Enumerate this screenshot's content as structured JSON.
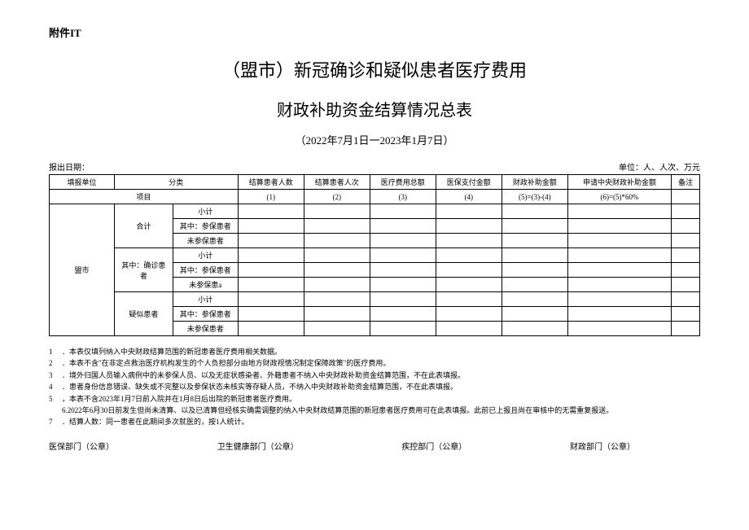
{
  "attachment": "附件IT",
  "title1": "（盟市）新冠确诊和疑似患者医疗费用",
  "title2": "财政补助资金结算情况总表",
  "dateRange": "（2022年7月1日一2023年1月7日）",
  "reportDateLabel": "报出日期：",
  "unitLabel": "单位：人、人次、万元",
  "headers": {
    "unit": "填报单位",
    "category": "分类",
    "col1": "结算患者人数",
    "col2": "结算患者人次",
    "col3": "医疗费用总额",
    "col4": "医保支付金额",
    "col5": "财政补助金额",
    "col6": "申请中央财政补助金额",
    "remark": "备注"
  },
  "headerRow2": {
    "project": "项目",
    "c1": "(1)",
    "c2": "(2)",
    "c3": "(3)",
    "c4": "(4)",
    "c5": "(5)=(3)-(4)",
    "c6": "(6)=(5)*60%"
  },
  "rows": {
    "city": "盟市",
    "total": "合计",
    "confirmed": "其中：确诊患者",
    "suspected": "疑似患者",
    "subtotal": "小计",
    "insured": "其中：参保患者",
    "uninsured": "未参保患者",
    "uninsured2": "未参保患a"
  },
  "notes": [
    "．本表仅填列纳入中央财政结算范围的新冠患者医疗费用相关数据。",
    "．本表不含\"在非定点救治医疗机构发生的个人负担部分由地方财政视情况制定保障政策\"的医疗费用。",
    "．境外归国人员输入病例中的未参保人员、以及无症状感染者、外籍患者不纳入中央财政补助资金结算范围，不在此表填报。",
    "．患者身份信息错误、缺失或不完整以及参保状态未核实等存疑人员，不纳入中央财政补助资金结算范围，不在此表填报。",
    "，本表不含2023年1月7日前入院并在1月8日后出院的新冠患者医疗费用。",
    "6.2022年6月30日前发生但尚未清算、以及已清算但经核实确需调整的纳入中央财政结算范围的新冠患者医疗费用可在此表填报。此前已上报且尚在审核中的无需重复报送。",
    "．结算人数：同一患者在此期间多次就医的，按1人统计。"
  ],
  "noteNums": [
    "1",
    "2",
    "3",
    "4",
    "5",
    "",
    "7"
  ],
  "signatures": {
    "s1": "医保部门（公章）",
    "s2": "卫生健康部门（公章）",
    "s3": "疾控部门（公章）",
    "s4": "财政部门（公章）"
  }
}
